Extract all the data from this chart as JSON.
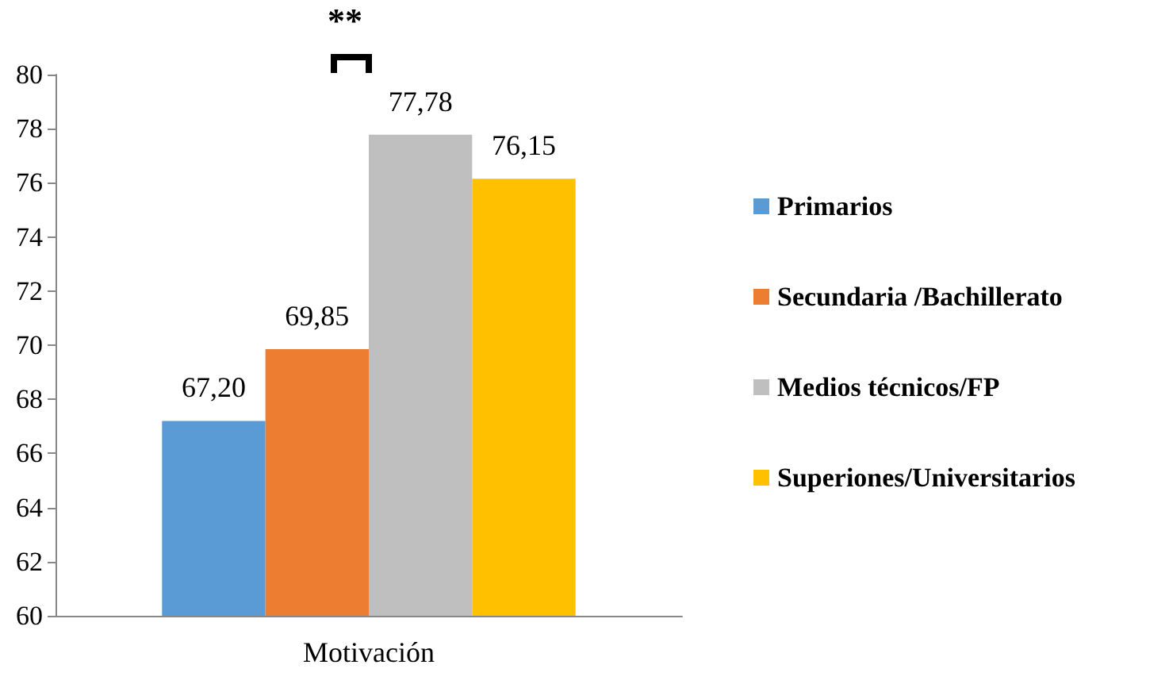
{
  "chart_data": {
    "type": "bar",
    "categories": [
      "Motivación"
    ],
    "series": [
      {
        "name": "Primarios",
        "color": "#5b9bd5",
        "values": [
          67.2
        ],
        "value_labels": [
          "67,20"
        ]
      },
      {
        "name": "Secundaria /Bachillerato",
        "color": "#ed7d31",
        "values": [
          69.85
        ],
        "value_labels": [
          "69,85"
        ]
      },
      {
        "name": "Medios técnicos/FP",
        "color": "#bfbfbf",
        "values": [
          77.78
        ],
        "value_labels": [
          "77,78"
        ]
      },
      {
        "name": "Superiones/Universitarios",
        "color": "#ffc000",
        "values": [
          76.15
        ],
        "value_labels": [
          "76,15"
        ]
      }
    ],
    "ylim": [
      60,
      80
    ],
    "yticks": [
      60,
      62,
      64,
      66,
      68,
      70,
      72,
      74,
      76,
      78,
      80
    ],
    "grid": false,
    "legend": "right",
    "annotations": [
      "**"
    ]
  }
}
